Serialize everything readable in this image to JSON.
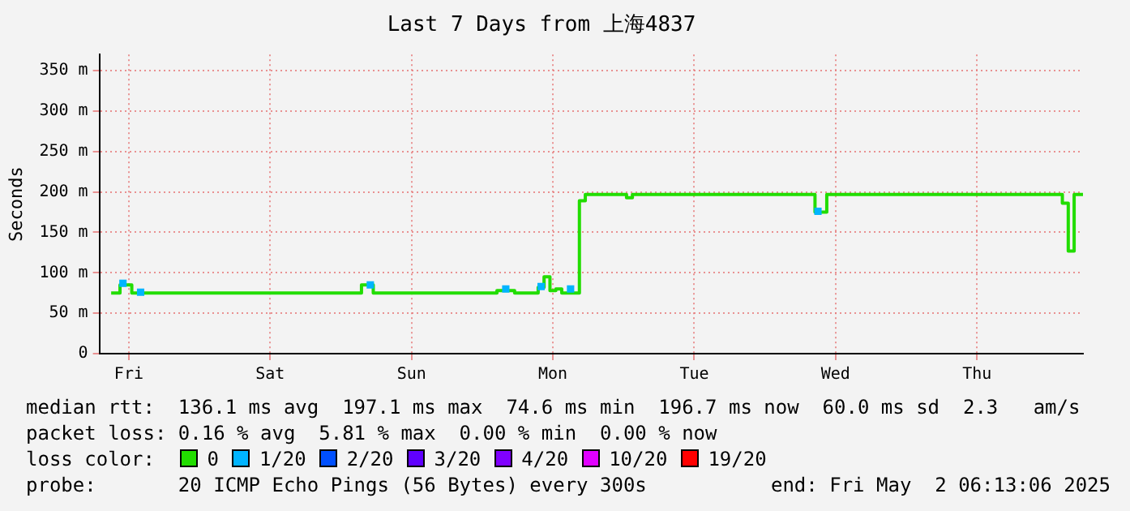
{
  "chart_data": {
    "type": "step",
    "title": "Last 7 Days from 上海4837",
    "ylabel": "Seconds",
    "legend_title": "loss color:",
    "legend": "bottom",
    "grid": true,
    "categories": [
      null,
      null,
      null,
      null,
      null,
      "Fri",
      null,
      null,
      null,
      null,
      null,
      null,
      null,
      null,
      null,
      null,
      null,
      null,
      null,
      null,
      null,
      null,
      null,
      null,
      null,
      null,
      null,
      null,
      null,
      "Sat",
      null,
      null,
      null,
      null,
      null,
      null,
      null,
      null,
      null,
      null,
      null,
      null,
      null,
      null,
      null,
      null,
      null,
      null,
      null,
      null,
      null,
      null,
      null,
      "Sun",
      null,
      null,
      null,
      null,
      null,
      null,
      null,
      null,
      null,
      null,
      null,
      null,
      null,
      null,
      null,
      null,
      null,
      null,
      null,
      null,
      null,
      null,
      null,
      "Mon",
      null,
      null,
      null,
      null,
      null,
      null,
      null,
      null,
      null,
      null,
      null,
      null,
      null,
      null,
      null,
      null,
      null,
      null,
      null,
      null,
      null,
      null,
      null,
      "Tue",
      null,
      null,
      null,
      null,
      null,
      null,
      null,
      null,
      null,
      null,
      null,
      null,
      null,
      null,
      null,
      null,
      null,
      null,
      null,
      null,
      null,
      null,
      null,
      "Wed",
      null,
      null,
      null,
      null,
      null,
      null,
      null,
      null,
      null,
      null,
      null,
      null,
      null,
      null,
      null,
      null,
      null,
      null,
      null,
      null,
      null,
      null,
      null,
      "Thu",
      null,
      null,
      null,
      null,
      null,
      null,
      null,
      null,
      null,
      null,
      null,
      null,
      null,
      null,
      null,
      null,
      null,
      null
    ],
    "ylim": [
      0,
      370
    ],
    "yticks": [
      0,
      {
        "value": 50,
        "label": "50 m"
      },
      {
        "value": 100,
        "label": "100 m"
      },
      {
        "value": 150,
        "label": "150 m"
      },
      {
        "value": 200,
        "label": "200 m"
      },
      {
        "value": 250,
        "label": "250 m"
      },
      {
        "value": 300,
        "label": "300 m"
      },
      {
        "value": 350,
        "label": "350 m"
      }
    ],
    "series": [
      {
        "name": "0",
        "color": "#22dd00",
        "values": [
          null,
          null,
          75,
          75,
          85,
          85,
          75,
          75,
          75,
          75,
          75,
          75,
          75,
          75,
          75,
          75,
          75,
          75,
          75,
          75,
          75,
          75,
          75,
          75,
          75,
          75,
          75,
          75,
          75,
          75,
          75,
          75,
          75,
          75,
          75,
          75,
          75,
          75,
          75,
          75,
          75,
          75,
          75,
          75,
          75,
          85,
          85,
          75,
          75,
          75,
          75,
          75,
          75,
          75,
          75,
          75,
          75,
          75,
          75,
          75,
          75,
          75,
          75,
          75,
          75,
          75,
          75,
          75,
          78,
          78,
          78,
          75,
          75,
          75,
          75,
          82,
          95,
          78,
          80,
          75,
          75,
          75,
          189,
          197,
          197,
          197,
          197,
          197,
          197,
          197,
          193,
          197,
          197,
          197,
          197,
          197,
          197,
          197,
          197,
          197,
          197,
          197,
          197,
          197,
          197,
          197,
          197,
          197,
          197,
          197,
          197,
          197,
          197,
          197,
          197,
          197,
          197,
          197,
          197,
          197,
          197,
          197,
          175,
          175,
          197,
          197,
          197,
          197,
          197,
          197,
          197,
          197,
          197,
          197,
          197,
          197,
          197,
          197,
          197,
          197,
          197,
          197,
          197,
          197,
          197,
          197,
          197,
          197,
          197,
          197,
          197,
          197,
          197,
          197,
          197,
          197,
          197,
          197,
          197,
          197,
          197,
          197,
          197,
          197,
          186,
          127,
          197,
          197
        ]
      },
      {
        "name": "1/20",
        "type": "scatter",
        "marker": "square",
        "color": "#00b4ff",
        "values": [
          null,
          null,
          null,
          null,
          87,
          null,
          null,
          76,
          null,
          null,
          null,
          null,
          null,
          null,
          null,
          null,
          null,
          null,
          null,
          null,
          null,
          null,
          null,
          null,
          null,
          null,
          null,
          null,
          null,
          null,
          null,
          null,
          null,
          null,
          null,
          null,
          null,
          null,
          null,
          null,
          null,
          null,
          null,
          null,
          null,
          null,
          85,
          null,
          null,
          null,
          null,
          null,
          null,
          null,
          null,
          null,
          null,
          null,
          null,
          null,
          null,
          null,
          null,
          null,
          null,
          null,
          null,
          null,
          null,
          80,
          null,
          null,
          null,
          null,
          null,
          83,
          null,
          null,
          null,
          null,
          80,
          null,
          null,
          null,
          null,
          null,
          null,
          null,
          null,
          null,
          null,
          null,
          null,
          null,
          null,
          null,
          null,
          null,
          null,
          null,
          null,
          null,
          null,
          null,
          null,
          null,
          null,
          null,
          null,
          null,
          null,
          null,
          null,
          null,
          null,
          null,
          null,
          null,
          null,
          null,
          null,
          null,
          176,
          null,
          null,
          null,
          null,
          null,
          null,
          null,
          null,
          null,
          null,
          null,
          null,
          null,
          null,
          null,
          null,
          null,
          null,
          null,
          null,
          null,
          null,
          null,
          null,
          null,
          null,
          null,
          null,
          null,
          null,
          null,
          null,
          null,
          null,
          null,
          null,
          null,
          null,
          null,
          null,
          null,
          null,
          null,
          null,
          null
        ]
      },
      {
        "name": "2/20",
        "type": "scatter",
        "marker": "square",
        "color": "#0050ff",
        "values": [
          null,
          null,
          null,
          null,
          null,
          null,
          null,
          null,
          null,
          null,
          null,
          null,
          null,
          null,
          null,
          null,
          null,
          null,
          null,
          null,
          null,
          null,
          null,
          null,
          null,
          null,
          null,
          null,
          null,
          null,
          null,
          null,
          null,
          null,
          null,
          null,
          null,
          null,
          null,
          null,
          null,
          null,
          null,
          null,
          null,
          null,
          null,
          null,
          null,
          null,
          null,
          null,
          null,
          null,
          null,
          null,
          null,
          null,
          null,
          null,
          null,
          null,
          null,
          null,
          null,
          null,
          null,
          null,
          null,
          null,
          null,
          null,
          null,
          null,
          null,
          null,
          null,
          null,
          null,
          null,
          null,
          null,
          null,
          null,
          null,
          null,
          null,
          null,
          null,
          null,
          null,
          null,
          null,
          null,
          null,
          null,
          null,
          null,
          null,
          null,
          null,
          null,
          null,
          null,
          null,
          null,
          null,
          null,
          null,
          null,
          null,
          null,
          null,
          null,
          null,
          null,
          null,
          null,
          null,
          null,
          null,
          null,
          null,
          null,
          null,
          null,
          null,
          null,
          null,
          null,
          null,
          null,
          null,
          null,
          null,
          null,
          null,
          null,
          null,
          null,
          null,
          null,
          null,
          null,
          null,
          null,
          null,
          null,
          null,
          null,
          null,
          null,
          null,
          null,
          null,
          null,
          null,
          null,
          null,
          null,
          null,
          null,
          null,
          null,
          null,
          null,
          null,
          null
        ]
      },
      {
        "name": "3/20",
        "type": "scatter",
        "marker": "square",
        "color": "#6000ff",
        "values": [
          null,
          null,
          null,
          null,
          null,
          null,
          null,
          null,
          null,
          null,
          null,
          null,
          null,
          null,
          null,
          null,
          null,
          null,
          null,
          null,
          null,
          null,
          null,
          null,
          null,
          null,
          null,
          null,
          null,
          null,
          null,
          null,
          null,
          null,
          null,
          null,
          null,
          null,
          null,
          null,
          null,
          null,
          null,
          null,
          null,
          null,
          null,
          null,
          null,
          null,
          null,
          null,
          null,
          null,
          null,
          null,
          null,
          null,
          null,
          null,
          null,
          null,
          null,
          null,
          null,
          null,
          null,
          null,
          null,
          null,
          null,
          null,
          null,
          null,
          null,
          null,
          null,
          null,
          null,
          null,
          null,
          null,
          null,
          null,
          null,
          null,
          null,
          null,
          null,
          null,
          null,
          null,
          null,
          null,
          null,
          null,
          null,
          null,
          null,
          null,
          null,
          null,
          null,
          null,
          null,
          null,
          null,
          null,
          null,
          null,
          null,
          null,
          null,
          null,
          null,
          null,
          null,
          null,
          null,
          null,
          null,
          null,
          null,
          null,
          null,
          null,
          null,
          null,
          null,
          null,
          null,
          null,
          null,
          null,
          null,
          null,
          null,
          null,
          null,
          null,
          null,
          null,
          null,
          null,
          null,
          null,
          null,
          null,
          null,
          null,
          null,
          null,
          null,
          null,
          null,
          null,
          null,
          null,
          null,
          null,
          null,
          null,
          null,
          null,
          null,
          null,
          null,
          null
        ]
      },
      {
        "name": "4/20",
        "type": "scatter",
        "marker": "square",
        "color": "#8000ff",
        "values": [
          null,
          null,
          null,
          null,
          null,
          null,
          null,
          null,
          null,
          null,
          null,
          null,
          null,
          null,
          null,
          null,
          null,
          null,
          null,
          null,
          null,
          null,
          null,
          null,
          null,
          null,
          null,
          null,
          null,
          null,
          null,
          null,
          null,
          null,
          null,
          null,
          null,
          null,
          null,
          null,
          null,
          null,
          null,
          null,
          null,
          null,
          null,
          null,
          null,
          null,
          null,
          null,
          null,
          null,
          null,
          null,
          null,
          null,
          null,
          null,
          null,
          null,
          null,
          null,
          null,
          null,
          null,
          null,
          null,
          null,
          null,
          null,
          null,
          null,
          null,
          null,
          null,
          null,
          null,
          null,
          null,
          null,
          null,
          null,
          null,
          null,
          null,
          null,
          null,
          null,
          null,
          null,
          null,
          null,
          null,
          null,
          null,
          null,
          null,
          null,
          null,
          null,
          null,
          null,
          null,
          null,
          null,
          null,
          null,
          null,
          null,
          null,
          null,
          null,
          null,
          null,
          null,
          null,
          null,
          null,
          null,
          null,
          null,
          null,
          null,
          null,
          null,
          null,
          null,
          null,
          null,
          null,
          null,
          null,
          null,
          null,
          null,
          null,
          null,
          null,
          null,
          null,
          null,
          null,
          null,
          null,
          null,
          null,
          null,
          null,
          null,
          null,
          null,
          null,
          null,
          null,
          null,
          null,
          null,
          null,
          null,
          null,
          null,
          null,
          null,
          null,
          null,
          null
        ]
      },
      {
        "name": "10/20",
        "type": "scatter",
        "marker": "square",
        "color": "#e000ff",
        "values": [
          null,
          null,
          null,
          null,
          null,
          null,
          null,
          null,
          null,
          null,
          null,
          null,
          null,
          null,
          null,
          null,
          null,
          null,
          null,
          null,
          null,
          null,
          null,
          null,
          null,
          null,
          null,
          null,
          null,
          null,
          null,
          null,
          null,
          null,
          null,
          null,
          null,
          null,
          null,
          null,
          null,
          null,
          null,
          null,
          null,
          null,
          null,
          null,
          null,
          null,
          null,
          null,
          null,
          null,
          null,
          null,
          null,
          null,
          null,
          null,
          null,
          null,
          null,
          null,
          null,
          null,
          null,
          null,
          null,
          null,
          null,
          null,
          null,
          null,
          null,
          null,
          null,
          null,
          null,
          null,
          null,
          null,
          null,
          null,
          null,
          null,
          null,
          null,
          null,
          null,
          null,
          null,
          null,
          null,
          null,
          null,
          null,
          null,
          null,
          null,
          null,
          null,
          null,
          null,
          null,
          null,
          null,
          null,
          null,
          null,
          null,
          null,
          null,
          null,
          null,
          null,
          null,
          null,
          null,
          null,
          null,
          null,
          null,
          null,
          null,
          null,
          null,
          null,
          null,
          null,
          null,
          null,
          null,
          null,
          null,
          null,
          null,
          null,
          null,
          null,
          null,
          null,
          null,
          null,
          null,
          null,
          null,
          null,
          null,
          null,
          null,
          null,
          null,
          null,
          null,
          null,
          null,
          null,
          null,
          null,
          null,
          null,
          null,
          null,
          null,
          null,
          null,
          null
        ]
      },
      {
        "name": "19/20",
        "type": "scatter",
        "marker": "square",
        "color": "#ff0000",
        "values": [
          null,
          null,
          null,
          null,
          null,
          null,
          null,
          null,
          null,
          null,
          null,
          null,
          null,
          null,
          null,
          null,
          null,
          null,
          null,
          null,
          null,
          null,
          null,
          null,
          null,
          null,
          null,
          null,
          null,
          null,
          null,
          null,
          null,
          null,
          null,
          null,
          null,
          null,
          null,
          null,
          null,
          null,
          null,
          null,
          null,
          null,
          null,
          null,
          null,
          null,
          null,
          null,
          null,
          null,
          null,
          null,
          null,
          null,
          null,
          null,
          null,
          null,
          null,
          null,
          null,
          null,
          null,
          null,
          null,
          null,
          null,
          null,
          null,
          null,
          null,
          null,
          null,
          null,
          null,
          null,
          null,
          null,
          null,
          null,
          null,
          null,
          null,
          null,
          null,
          null,
          null,
          null,
          null,
          null,
          null,
          null,
          null,
          null,
          null,
          null,
          null,
          null,
          null,
          null,
          null,
          null,
          null,
          null,
          null,
          null,
          null,
          null,
          null,
          null,
          null,
          null,
          null,
          null,
          null,
          null,
          null,
          null,
          null,
          null,
          null,
          null,
          null,
          null,
          null,
          null,
          null,
          null,
          null,
          null,
          null,
          null,
          null,
          null,
          null,
          null,
          null,
          null,
          null,
          null,
          null,
          null,
          null,
          null,
          null,
          null,
          null,
          null,
          null,
          null,
          null,
          null,
          null,
          null,
          null,
          null,
          null,
          null,
          null,
          null,
          null,
          null,
          null,
          null
        ]
      }
    ],
    "annotations": [
      "median rtt:  136.1 ms avg  197.1 ms max  74.6 ms min  196.7 ms now  60.0 ms sd  2.3   am/s",
      "packet loss: 0.16 % avg  5.81 % max  0.00 % min  0.00 % now",
      "probe:       20 ICMP Echo Pings (56 Bytes) every 300s",
      "end: Fri May  2 06:13:06 2025"
    ]
  }
}
